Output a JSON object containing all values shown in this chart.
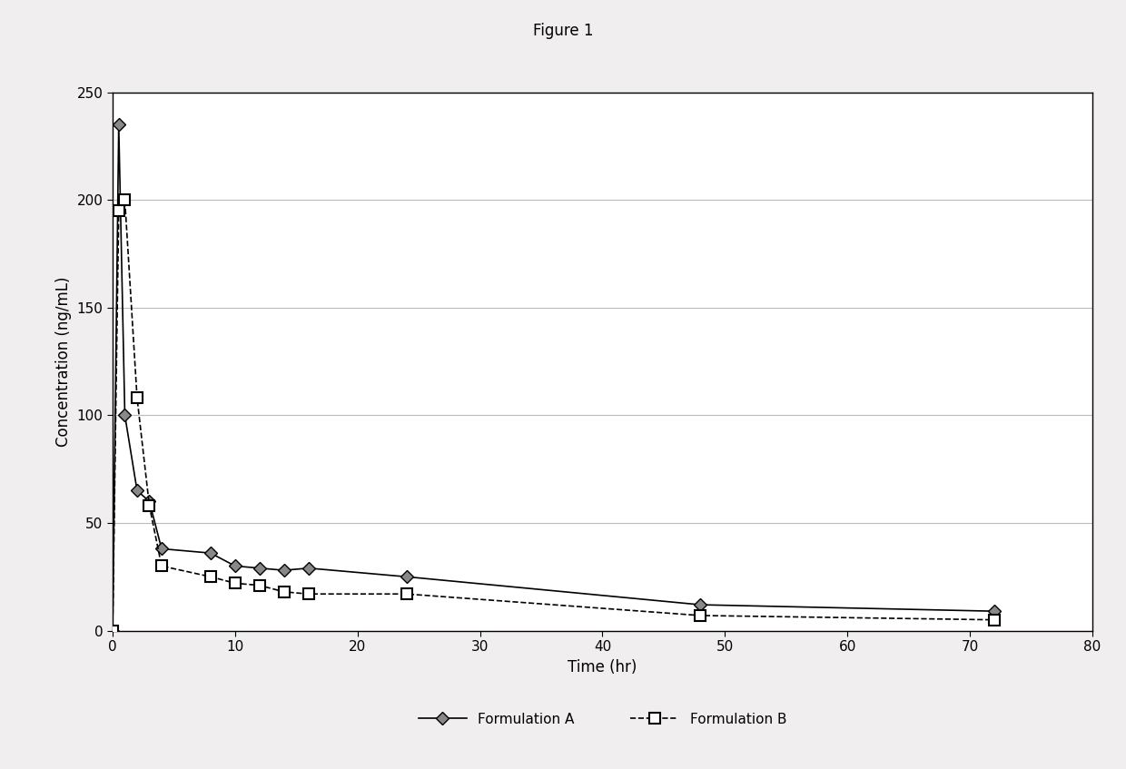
{
  "title": "Figure 1",
  "xlabel": "Time (hr)",
  "ylabel": "Concentration (ng/mL)",
  "xlim": [
    0,
    80
  ],
  "ylim": [
    0,
    250
  ],
  "xticks": [
    0,
    10,
    20,
    30,
    40,
    50,
    60,
    70,
    80
  ],
  "yticks": [
    0,
    50,
    100,
    150,
    200,
    250
  ],
  "formulation_A": {
    "x": [
      0,
      0.5,
      1,
      2,
      3,
      4,
      8,
      10,
      12,
      14,
      16,
      24,
      48,
      72
    ],
    "y": [
      0,
      235,
      100,
      65,
      60,
      38,
      36,
      30,
      29,
      28,
      29,
      25,
      12,
      9
    ],
    "label": "Formulation A",
    "color": "#000000",
    "linestyle": "-",
    "marker": "D",
    "markersize": 7,
    "linewidth": 1.2,
    "markerfacecolor": "#888888",
    "markeredgecolor": "#000000",
    "markeredgewidth": 1.0
  },
  "formulation_B": {
    "x": [
      0,
      0.5,
      1,
      2,
      3,
      4,
      8,
      10,
      12,
      14,
      16,
      24,
      48,
      72
    ],
    "y": [
      0,
      195,
      200,
      108,
      58,
      30,
      25,
      22,
      21,
      18,
      17,
      17,
      7,
      5
    ],
    "label": "Formulation B",
    "color": "#000000",
    "linestyle": "--",
    "marker": "s",
    "markersize": 8,
    "linewidth": 1.2,
    "markerfacecolor": "#ffffff",
    "markeredgecolor": "#000000",
    "markeredgewidth": 1.5
  },
  "figure_facecolor": "#f0eeee",
  "axes_facecolor": "#ffffff",
  "grid_color": "#bbbbbb",
  "title_fontsize": 12,
  "axis_label_fontsize": 12,
  "tick_fontsize": 11,
  "legend_fontsize": 11
}
